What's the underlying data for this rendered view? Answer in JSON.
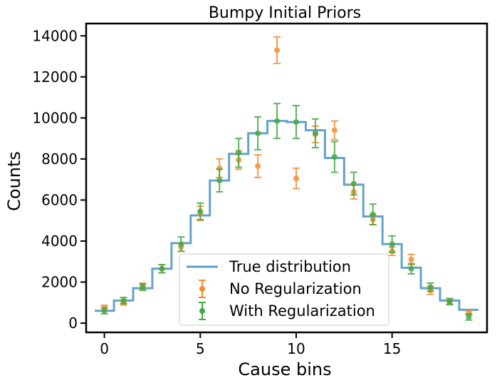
{
  "chart_data": {
    "type": "step+errorbar",
    "title": "Bumpy Initial Priors",
    "xlabel": "Cause bins",
    "ylabel": "Counts",
    "xlim": [
      -0.95,
      19.95
    ],
    "ylim": [
      -450,
      14600
    ],
    "xticks": [
      0,
      5,
      10,
      15
    ],
    "yticks": [
      0,
      2000,
      4000,
      6000,
      8000,
      10000,
      12000,
      14000
    ],
    "grid": false,
    "legend_position": "lower-center",
    "colors": {
      "true": "#5b9ec9",
      "noreg": "#f58a2e",
      "withreg": "#3fa843"
    },
    "true_distribution": {
      "name": "True distribution",
      "x": [
        0,
        1,
        2,
        3,
        4,
        5,
        6,
        7,
        8,
        9,
        10,
        11,
        12,
        13,
        14,
        15,
        16,
        17,
        18,
        19
      ],
      "values": [
        600,
        1100,
        1700,
        2650,
        3900,
        5250,
        6950,
        8250,
        9250,
        9850,
        9800,
        9400,
        8050,
        6750,
        5200,
        3850,
        2700,
        1700,
        1100,
        650
      ]
    },
    "series": [
      {
        "name": "No Regularization",
        "x": [
          0,
          1,
          2,
          3,
          4,
          5,
          6,
          7,
          8,
          9,
          10,
          11,
          12,
          13,
          14,
          15,
          16,
          17,
          18,
          19
        ],
        "values": [
          750,
          1000,
          1800,
          2650,
          3700,
          5350,
          7550,
          7950,
          7650,
          13300,
          7050,
          9200,
          9400,
          6400,
          5050,
          3500,
          3100,
          1600,
          1050,
          500
        ],
        "errors": [
          120,
          120,
          150,
          200,
          200,
          350,
          450,
          450,
          550,
          650,
          500,
          400,
          450,
          350,
          250,
          200,
          250,
          200,
          120,
          100
        ]
      },
      {
        "name": "With Regularization",
        "x": [
          0,
          1,
          2,
          3,
          4,
          5,
          6,
          7,
          8,
          9,
          10,
          11,
          12,
          13,
          14,
          15,
          16,
          17,
          18,
          19
        ],
        "values": [
          600,
          1100,
          1750,
          2650,
          3850,
          5450,
          6950,
          8300,
          9250,
          9850,
          9800,
          9250,
          8100,
          6800,
          5300,
          3850,
          2650,
          1750,
          1050,
          300
        ],
        "errors": [
          150,
          150,
          150,
          200,
          350,
          400,
          550,
          700,
          800,
          850,
          800,
          700,
          750,
          550,
          500,
          400,
          250,
          200,
          150,
          150
        ]
      }
    ]
  }
}
